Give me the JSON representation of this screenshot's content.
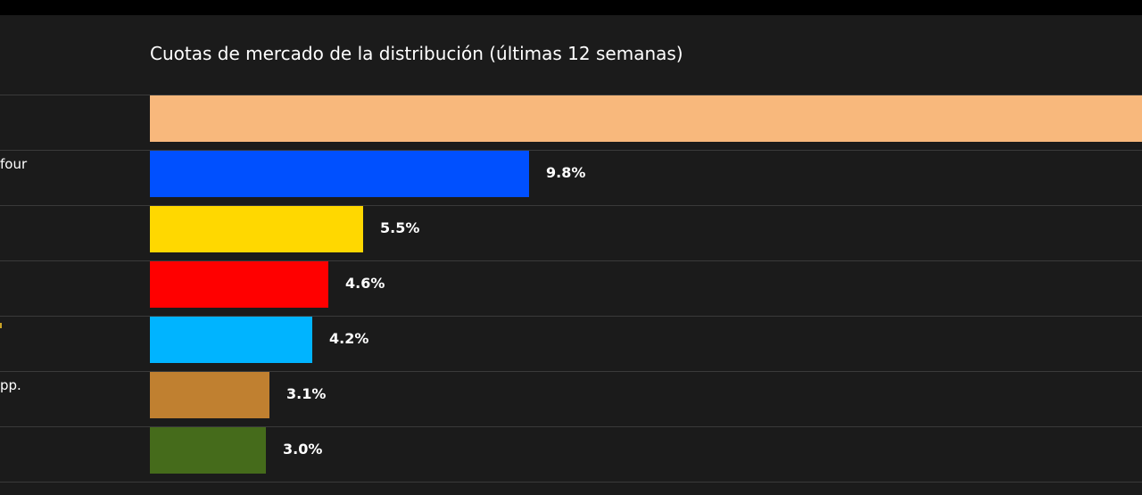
{
  "chart_data": {
    "type": "bar",
    "orientation": "horizontal",
    "title": "Cuotas de mercado de la distribución (últimas 12 semanas)",
    "rows": [
      {
        "label": "",
        "value": null,
        "value_label": "",
        "color": "#f8b87c"
      },
      {
        "label": "four",
        "value": 9.8,
        "value_label": "9.8%",
        "color": "#0050ff"
      },
      {
        "label": "",
        "value": 5.5,
        "value_label": "5.5%",
        "color": "#ffd800"
      },
      {
        "label": "",
        "value": 4.6,
        "value_label": "4.6%",
        "color": "#ff0000"
      },
      {
        "label": "",
        "value": 4.2,
        "value_label": "4.2%",
        "color": "#00b4ff"
      },
      {
        "label": "pp.",
        "value": 3.1,
        "value_label": "3.1%",
        "color": "#c08030"
      },
      {
        "label": "",
        "value": 3.0,
        "value_label": "3.0%",
        "color": "#456b1b"
      }
    ]
  }
}
